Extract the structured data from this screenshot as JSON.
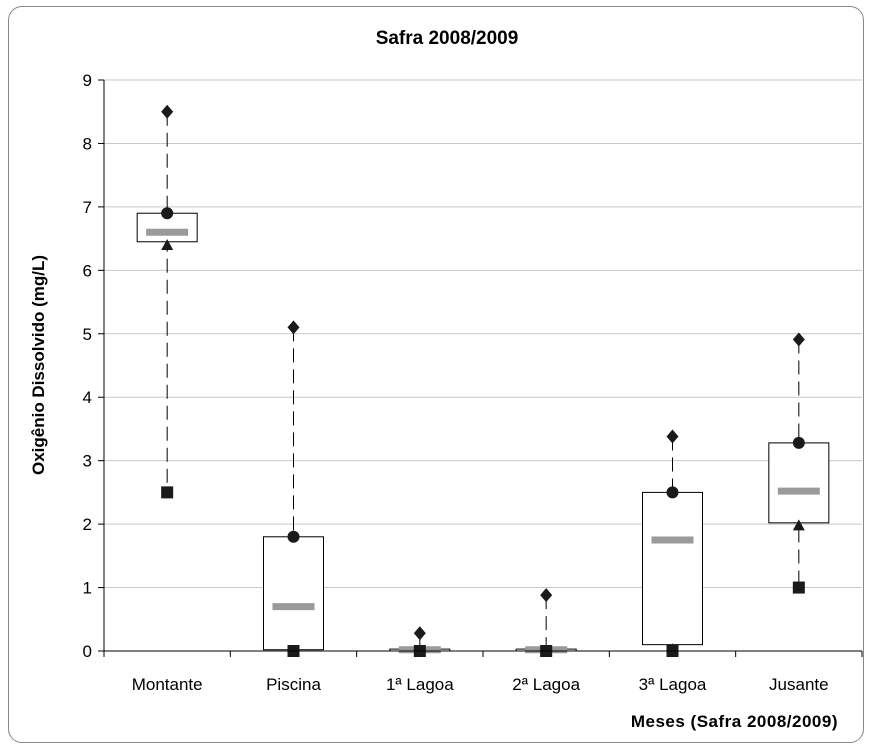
{
  "chart_data": {
    "type": "box",
    "title": "Safra 2008/2009",
    "xlabel": "Meses (Safra 2008/2009)",
    "ylabel": "Oxigênio Dissolvido (mg/L)",
    "ylim": [
      0,
      9
    ],
    "yticks": [
      0,
      1,
      2,
      3,
      4,
      5,
      6,
      7,
      8,
      9
    ],
    "grid": true,
    "categories": [
      "Montante",
      "Piscina",
      "1ª Lagoa",
      "2ª Lagoa",
      "3ª Lagoa",
      "Jusante"
    ],
    "boxes": [
      {
        "q1": 6.45,
        "q3": 6.9,
        "median": 6.6,
        "max": 8.5,
        "q3_marker": 6.9,
        "q1_marker": 6.4,
        "min": 2.5
      },
      {
        "q1": 0.02,
        "q3": 1.8,
        "median": 0.7,
        "max": 5.1,
        "q3_marker": 1.8,
        "q1_marker": 0.0,
        "min": 0.0
      },
      {
        "q1": 0.0,
        "q3": 0.03,
        "median": 0.02,
        "max": 0.28,
        "q3_marker": 0.0,
        "q1_marker": 0.0,
        "min": 0.0
      },
      {
        "q1": 0.0,
        "q3": 0.03,
        "median": 0.02,
        "max": 0.88,
        "q3_marker": 0.0,
        "q1_marker": 0.0,
        "min": 0.0
      },
      {
        "q1": 0.1,
        "q3": 2.5,
        "median": 1.75,
        "max": 3.38,
        "q3_marker": 2.5,
        "q1_marker": 0.03,
        "min": 0.0
      },
      {
        "q1": 2.02,
        "q3": 3.28,
        "median": 2.52,
        "max": 4.91,
        "q3_marker": 3.28,
        "q1_marker": 1.98,
        "min": 1.0
      }
    ],
    "marker_legend": {
      "max": "diamond",
      "q3_marker": "circle",
      "q1_marker": "triangle",
      "min": "square",
      "median": "gray-bar"
    },
    "colors": {
      "markers": "#1a1a1a",
      "median_bar": "#9a9a9a",
      "grid": "#c8c8c8",
      "axis": "#000000",
      "box_stroke": "#000000"
    }
  }
}
